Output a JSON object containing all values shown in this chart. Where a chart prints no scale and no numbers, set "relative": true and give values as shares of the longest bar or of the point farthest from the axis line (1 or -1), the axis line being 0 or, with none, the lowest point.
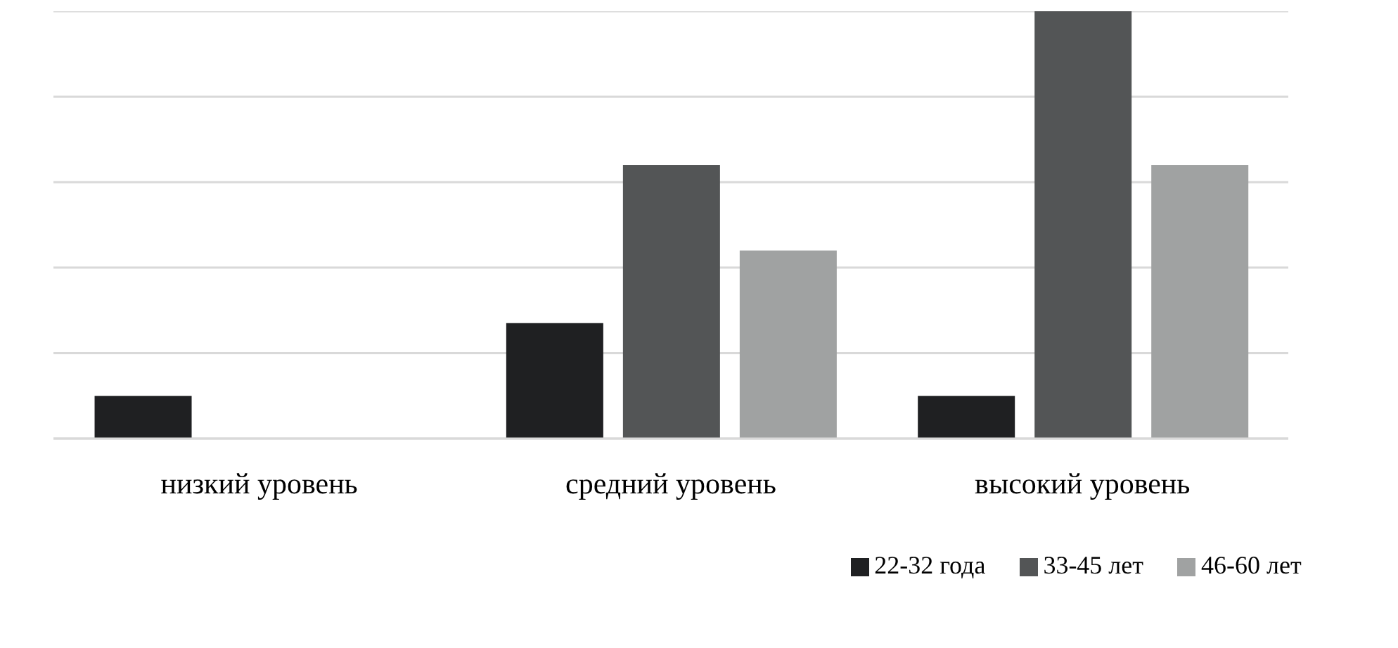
{
  "chart_data": {
    "type": "bar",
    "relative": true,
    "categories": [
      "низкий уровень",
      "средний уровень",
      "высокий уровень"
    ],
    "series": [
      {
        "name": "22-32 года",
        "color": "#1f2022",
        "values": [
          0.1,
          0.27,
          0.1
        ]
      },
      {
        "name": "33-45 лет",
        "color": "#535556",
        "values": [
          null,
          0.64,
          1
        ]
      },
      {
        "name": "46-60 лет",
        "color": "#a0a2a2",
        "values": [
          null,
          0.44,
          0.64
        ]
      }
    ],
    "grid": "y",
    "legend": "bottom"
  }
}
